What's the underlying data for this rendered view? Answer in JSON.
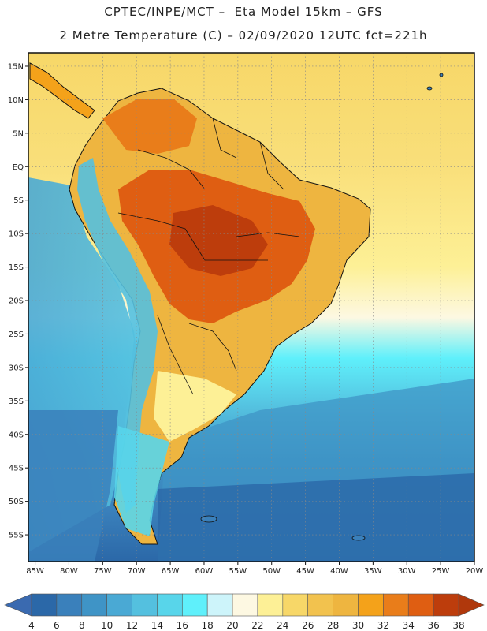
{
  "title_line1": "CPTEC/INPE/MCT –  Eta Model 15km – GFS",
  "title_line2": "2 Metre Temperature (C) – 02/09/2020 12UTC fct=221h",
  "map": {
    "lon_range": [
      -86,
      -20
    ],
    "lat_range": [
      -59,
      17
    ],
    "lat_labels": [
      {
        "lat": 15,
        "text": "15N"
      },
      {
        "lat": 10,
        "text": "10N"
      },
      {
        "lat": 5,
        "text": "5N"
      },
      {
        "lat": 0,
        "text": "EQ"
      },
      {
        "lat": -5,
        "text": "5S"
      },
      {
        "lat": -10,
        "text": "10S"
      },
      {
        "lat": -15,
        "text": "15S"
      },
      {
        "lat": -20,
        "text": "20S"
      },
      {
        "lat": -25,
        "text": "25S"
      },
      {
        "lat": -30,
        "text": "30S"
      },
      {
        "lat": -35,
        "text": "35S"
      },
      {
        "lat": -40,
        "text": "40S"
      },
      {
        "lat": -45,
        "text": "45S"
      },
      {
        "lat": -50,
        "text": "50S"
      },
      {
        "lat": -55,
        "text": "55S"
      }
    ],
    "lon_labels": [
      {
        "lon": -85,
        "text": "85W"
      },
      {
        "lon": -80,
        "text": "80W"
      },
      {
        "lon": -75,
        "text": "75W"
      },
      {
        "lon": -70,
        "text": "70W"
      },
      {
        "lon": -65,
        "text": "65W"
      },
      {
        "lon": -60,
        "text": "60W"
      },
      {
        "lon": -55,
        "text": "55W"
      },
      {
        "lon": -50,
        "text": "50W"
      },
      {
        "lon": -45,
        "text": "45W"
      },
      {
        "lon": -40,
        "text": "40W"
      },
      {
        "lon": -35,
        "text": "35W"
      },
      {
        "lon": -30,
        "text": "30W"
      },
      {
        "lon": -25,
        "text": "25W"
      },
      {
        "lon": -20,
        "text": "20W"
      }
    ]
  },
  "colorbar": {
    "labels": [
      "4",
      "6",
      "8",
      "10",
      "12",
      "14",
      "16",
      "18",
      "20",
      "22",
      "24",
      "26",
      "28",
      "30",
      "32",
      "34",
      "36",
      "38"
    ],
    "colors": [
      "#2b68a8",
      "#3a80bb",
      "#3f94c6",
      "#4aa9d4",
      "#54c0df",
      "#58d5ea",
      "#5ff0fb",
      "#cdf4fa",
      "#fdf8e2",
      "#fdf096",
      "#f7d768",
      "#f2c24e",
      "#eeb540",
      "#f4a21a",
      "#e97d1a",
      "#df5e12",
      "#bd3d0c"
    ],
    "left_arrow_color": "#3a6ab0",
    "right_arrow_color": "#b0380c"
  }
}
